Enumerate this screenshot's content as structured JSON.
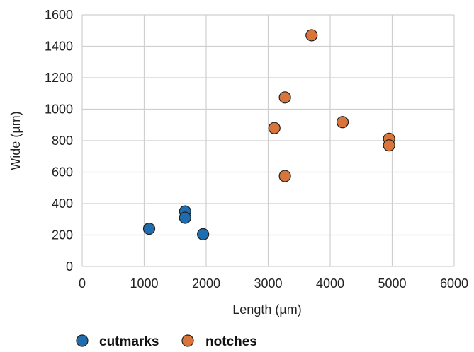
{
  "chart_data": {
    "type": "scatter",
    "title": "",
    "xlabel": "Length (µm)",
    "ylabel": "Wide (µm)",
    "xlim": [
      0,
      6000
    ],
    "ylim": [
      0,
      1600
    ],
    "xticks": [
      0,
      1000,
      2000,
      3000,
      4000,
      5000,
      6000
    ],
    "yticks": [
      0,
      200,
      400,
      600,
      800,
      1000,
      1200,
      1400,
      1600
    ],
    "grid": true,
    "legend": "bottom-left",
    "series": [
      {
        "name": "cutmarks",
        "color": "#1f6cae",
        "points": [
          [
            1080,
            240
          ],
          [
            1660,
            350
          ],
          [
            1660,
            310
          ],
          [
            1950,
            205
          ]
        ]
      },
      {
        "name": "notches",
        "color": "#d9753b",
        "points": [
          [
            3700,
            1470
          ],
          [
            3270,
            1075
          ],
          [
            3100,
            880
          ],
          [
            4200,
            918
          ],
          [
            4950,
            812
          ],
          [
            4950,
            770
          ],
          [
            3270,
            575
          ]
        ]
      }
    ]
  }
}
